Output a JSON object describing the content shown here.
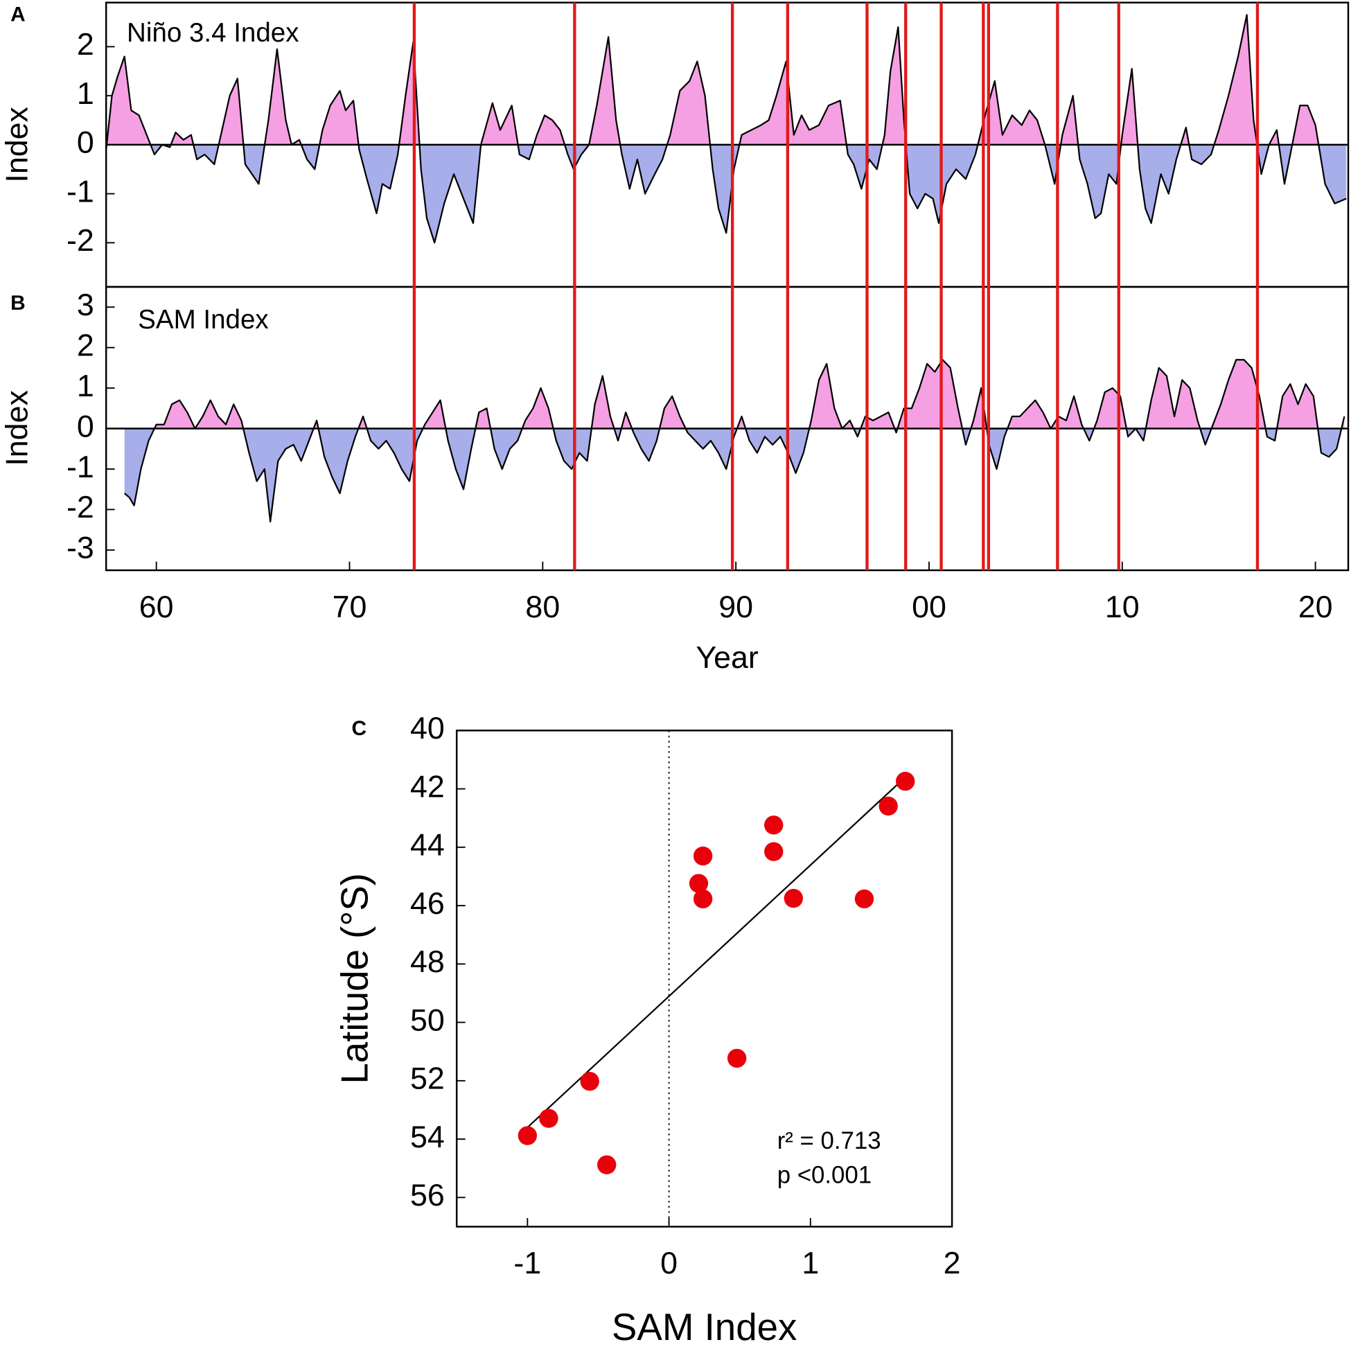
{
  "chart_data": [
    {
      "type": "area",
      "panel_label": "A",
      "title": "Niño 3.4 Index",
      "ylabel": "Index",
      "x": [
        1957.4,
        1957.7,
        1958.0,
        1958.35,
        1958.7,
        1959.1,
        1959.5,
        1959.9,
        1960.3,
        1960.7,
        1961.0,
        1961.4,
        1961.8,
        1962.1,
        1962.5,
        1963.0,
        1963.4,
        1963.8,
        1964.2,
        1964.6,
        1965.3,
        1965.8,
        1966.25,
        1966.7,
        1967.0,
        1967.4,
        1967.8,
        1968.2,
        1968.6,
        1969.0,
        1969.5,
        1969.8,
        1970.2,
        1970.5,
        1970.9,
        1971.4,
        1971.7,
        1972.1,
        1972.5,
        1972.9,
        1973.3,
        1973.7,
        1974.0,
        1974.4,
        1974.9,
        1975.4,
        1975.9,
        1976.4,
        1976.8,
        1977.4,
        1977.8,
        1978.4,
        1978.8,
        1979.3,
        1979.7,
        1980.1,
        1980.5,
        1980.9,
        1981.3,
        1981.6,
        1982.0,
        1982.4,
        1982.8,
        1983.4,
        1983.8,
        1984.1,
        1984.5,
        1984.9,
        1985.3,
        1985.8,
        1986.2,
        1986.6,
        1987.1,
        1987.6,
        1988.0,
        1988.4,
        1988.8,
        1989.1,
        1989.5,
        1989.9,
        1990.3,
        1990.8,
        1991.3,
        1991.7,
        1992.1,
        1992.6,
        1993.0,
        1993.4,
        1993.8,
        1994.3,
        1994.8,
        1995.4,
        1995.8,
        1996.1,
        1996.5,
        1996.9,
        1997.3,
        1997.7,
        1998.0,
        1998.4,
        1998.7,
        1999.0,
        1999.4,
        1999.8,
        2000.2,
        2000.5,
        2000.9,
        2001.4,
        2001.9,
        2002.4,
        2002.9,
        2003.4,
        2003.8,
        2004.3,
        2004.8,
        2005.2,
        2005.6,
        2006.0,
        2006.5,
        2006.9,
        2007.45,
        2007.8,
        2008.2,
        2008.6,
        2008.9,
        2009.3,
        2009.7,
        2010.0,
        2010.5,
        2010.9,
        2011.2,
        2011.5,
        2012.0,
        2012.4,
        2012.8,
        2013.3,
        2013.6,
        2014.1,
        2014.6,
        2015.0,
        2015.5,
        2016.0,
        2016.45,
        2016.8,
        2017.2,
        2017.6,
        2018.0,
        2018.4,
        2018.8,
        2019.2,
        2019.6,
        2020.0,
        2020.5,
        2021.0,
        2021.6
      ],
      "values": [
        -0.1,
        1.0,
        1.4,
        1.8,
        0.7,
        0.6,
        0.2,
        -0.2,
        0.0,
        -0.05,
        0.25,
        0.1,
        0.2,
        -0.3,
        -0.2,
        -0.4,
        0.3,
        1.0,
        1.35,
        -0.4,
        -0.8,
        0.5,
        1.95,
        0.5,
        0.0,
        0.1,
        -0.3,
        -0.5,
        0.3,
        0.8,
        1.1,
        0.7,
        0.9,
        -0.1,
        -0.7,
        -1.4,
        -0.8,
        -0.9,
        -0.2,
        1.0,
        2.1,
        -0.5,
        -1.5,
        -2.0,
        -1.2,
        -0.6,
        -1.1,
        -1.6,
        0.0,
        0.85,
        0.3,
        0.8,
        -0.2,
        -0.3,
        0.2,
        0.6,
        0.5,
        0.3,
        -0.2,
        -0.5,
        -0.2,
        0.0,
        0.8,
        2.2,
        0.5,
        -0.2,
        -0.9,
        -0.3,
        -1.0,
        -0.6,
        -0.3,
        0.2,
        1.1,
        1.3,
        1.7,
        1.0,
        -0.5,
        -1.3,
        -1.8,
        -0.5,
        0.2,
        0.3,
        0.4,
        0.5,
        1.0,
        1.7,
        0.2,
        0.6,
        0.3,
        0.4,
        0.8,
        0.9,
        -0.2,
        -0.4,
        -0.9,
        -0.3,
        -0.5,
        0.2,
        1.5,
        2.4,
        0.5,
        -1.0,
        -1.3,
        -1.0,
        -1.1,
        -1.6,
        -0.8,
        -0.5,
        -0.7,
        -0.2,
        0.6,
        1.3,
        0.2,
        0.6,
        0.4,
        0.7,
        0.5,
        0.0,
        -0.8,
        0.2,
        1.0,
        -0.3,
        -0.8,
        -1.5,
        -1.4,
        -0.6,
        -0.8,
        0.2,
        1.55,
        -0.5,
        -1.3,
        -1.6,
        -0.6,
        -1.0,
        -0.3,
        0.35,
        -0.3,
        -0.4,
        -0.2,
        0.3,
        1.0,
        1.8,
        2.65,
        0.5,
        -0.6,
        0.0,
        0.3,
        -0.8,
        0.0,
        0.8,
        0.8,
        0.4,
        -0.8,
        -1.2,
        -1.1
      ],
      "pos_color": "#f5a0e2",
      "neg_color": "#a7aeea",
      "line_color": "#000000",
      "xlim": [
        1957.4,
        2021.7
      ],
      "ylim": [
        -2.9,
        2.9
      ],
      "yticks": [
        -2,
        -1,
        0,
        1,
        2
      ],
      "event_x": [
        1973.35,
        1981.65,
        1989.82,
        1992.68,
        1996.79,
        1998.79,
        2000.63,
        2002.81,
        2003.08,
        2006.65,
        2009.82,
        2017.0
      ],
      "event_color": "#e21a1a"
    },
    {
      "type": "area",
      "panel_label": "B",
      "title": "SAM Index",
      "ylabel": "Index",
      "xlabel": "Year",
      "x": [
        1958.35,
        1958.6,
        1958.85,
        1959.2,
        1959.6,
        1960.0,
        1960.4,
        1960.8,
        1961.2,
        1961.6,
        1962.0,
        1962.4,
        1962.8,
        1963.2,
        1963.6,
        1964.0,
        1964.4,
        1964.8,
        1965.2,
        1965.6,
        1965.9,
        1966.3,
        1966.7,
        1967.1,
        1967.5,
        1967.9,
        1968.3,
        1968.7,
        1969.1,
        1969.5,
        1969.9,
        1970.3,
        1970.7,
        1971.1,
        1971.5,
        1971.9,
        1972.3,
        1972.7,
        1973.1,
        1973.5,
        1973.9,
        1974.3,
        1974.7,
        1975.1,
        1975.5,
        1975.9,
        1976.3,
        1976.7,
        1977.1,
        1977.5,
        1977.9,
        1978.3,
        1978.7,
        1979.1,
        1979.5,
        1979.9,
        1980.3,
        1980.7,
        1981.1,
        1981.5,
        1981.9,
        1982.3,
        1982.7,
        1983.1,
        1983.5,
        1983.9,
        1984.3,
        1984.7,
        1985.1,
        1985.5,
        1985.9,
        1986.3,
        1986.7,
        1987.1,
        1987.5,
        1987.9,
        1988.3,
        1988.7,
        1989.1,
        1989.5,
        1989.9,
        1990.3,
        1990.7,
        1991.1,
        1991.5,
        1991.9,
        1992.3,
        1992.7,
        1993.1,
        1993.5,
        1993.9,
        1994.3,
        1994.7,
        1995.1,
        1995.5,
        1995.9,
        1996.3,
        1996.7,
        1997.1,
        1997.5,
        1997.9,
        1998.3,
        1998.7,
        1999.1,
        1999.5,
        1999.9,
        2000.3,
        2000.7,
        2001.1,
        2001.5,
        2001.9,
        2002.3,
        2002.7,
        2003.1,
        2003.5,
        2003.9,
        2004.3,
        2004.7,
        2005.1,
        2005.5,
        2005.9,
        2006.3,
        2006.7,
        2007.1,
        2007.5,
        2007.9,
        2008.3,
        2008.7,
        2009.1,
        2009.5,
        2009.9,
        2010.3,
        2010.7,
        2011.1,
        2011.5,
        2011.9,
        2012.3,
        2012.7,
        2013.1,
        2013.5,
        2013.9,
        2014.3,
        2014.7,
        2015.1,
        2015.5,
        2015.9,
        2016.3,
        2016.7,
        2017.1,
        2017.5,
        2017.9,
        2018.3,
        2018.7,
        2019.1,
        2019.5,
        2019.9,
        2020.3,
        2020.7,
        2021.1,
        2021.5
      ],
      "values": [
        -1.6,
        -1.7,
        -1.9,
        -1.0,
        -0.3,
        0.1,
        0.1,
        0.6,
        0.7,
        0.4,
        0.0,
        0.3,
        0.7,
        0.3,
        0.1,
        0.6,
        0.2,
        -0.6,
        -1.3,
        -1.0,
        -2.3,
        -0.8,
        -0.5,
        -0.4,
        -0.8,
        -0.3,
        0.2,
        -0.7,
        -1.2,
        -1.6,
        -0.8,
        -0.2,
        0.3,
        -0.3,
        -0.5,
        -0.3,
        -0.6,
        -1.0,
        -1.3,
        -0.3,
        0.1,
        0.4,
        0.7,
        -0.3,
        -1.0,
        -1.5,
        -0.5,
        0.4,
        0.5,
        -0.5,
        -1.0,
        -0.5,
        -0.3,
        0.2,
        0.5,
        1.0,
        0.5,
        -0.3,
        -0.8,
        -1.0,
        -0.6,
        -0.8,
        0.6,
        1.3,
        0.3,
        -0.3,
        0.4,
        -0.1,
        -0.5,
        -0.8,
        -0.3,
        0.5,
        0.8,
        0.3,
        -0.1,
        -0.3,
        -0.5,
        -0.3,
        -0.6,
        -1.0,
        -0.2,
        0.3,
        -0.3,
        -0.6,
        -0.2,
        -0.4,
        -0.2,
        -0.6,
        -1.1,
        -0.6,
        0.2,
        1.2,
        1.6,
        0.5,
        0.0,
        0.2,
        -0.2,
        0.3,
        0.2,
        0.3,
        0.4,
        -0.1,
        0.5,
        0.5,
        1.0,
        1.6,
        1.4,
        1.7,
        1.5,
        0.5,
        -0.4,
        0.2,
        1.0,
        -0.4,
        -1.0,
        -0.2,
        0.3,
        0.3,
        0.5,
        0.7,
        0.4,
        0.0,
        0.3,
        0.2,
        0.8,
        0.1,
        -0.3,
        0.2,
        0.9,
        1.0,
        0.8,
        -0.2,
        0.0,
        -0.3,
        0.7,
        1.5,
        1.3,
        0.3,
        1.2,
        1.0,
        0.2,
        -0.4,
        0.1,
        0.6,
        1.2,
        1.7,
        1.7,
        1.5,
        0.8,
        -0.2,
        -0.3,
        0.8,
        1.1,
        0.6,
        1.1,
        0.8,
        -0.6,
        -0.7,
        -0.5,
        0.3
      ],
      "pos_color": "#f5a0e2",
      "neg_color": "#a7aeea",
      "line_color": "#000000",
      "xlim": [
        1957.4,
        2021.7
      ],
      "xticks": [
        {
          "value": 1960,
          "label": "60"
        },
        {
          "value": 1970,
          "label": "70"
        },
        {
          "value": 1980,
          "label": "80"
        },
        {
          "value": 1990,
          "label": "90"
        },
        {
          "value": 2000,
          "label": "00"
        },
        {
          "value": 2010,
          "label": "10"
        },
        {
          "value": 2020,
          "label": "20"
        }
      ],
      "ylim": [
        -3.5,
        3.5
      ],
      "yticks": [
        -3,
        -2,
        -1,
        0,
        1,
        2,
        3
      ]
    },
    {
      "type": "scatter",
      "panel_label": "C",
      "xlabel": "SAM Index",
      "ylabel": "Latitude (°S)",
      "x": [
        -1.0,
        -0.85,
        -0.56,
        -0.44,
        0.21,
        0.24,
        0.24,
        0.48,
        0.74,
        0.74,
        0.88,
        1.38,
        1.55,
        1.67
      ],
      "values": [
        53.88,
        53.29,
        52.02,
        54.88,
        45.24,
        44.3,
        45.77,
        51.23,
        43.24,
        44.15,
        45.75,
        45.77,
        42.59,
        41.74
      ],
      "color": "#e8000b",
      "xlim": [
        -1.5,
        2
      ],
      "xticks": [
        -1,
        0,
        1,
        2
      ],
      "ylim": [
        40,
        57
      ],
      "invert_y": true,
      "yticks": [
        40,
        42,
        44,
        46,
        48,
        50,
        52,
        54,
        56
      ],
      "fit": {
        "x": [
          -1.0,
          1.67
        ],
        "y": [
          53.6,
          41.6
        ]
      },
      "reference_x": 0,
      "annotations": [
        "r² = 0.713",
        "p <0.001"
      ]
    }
  ]
}
